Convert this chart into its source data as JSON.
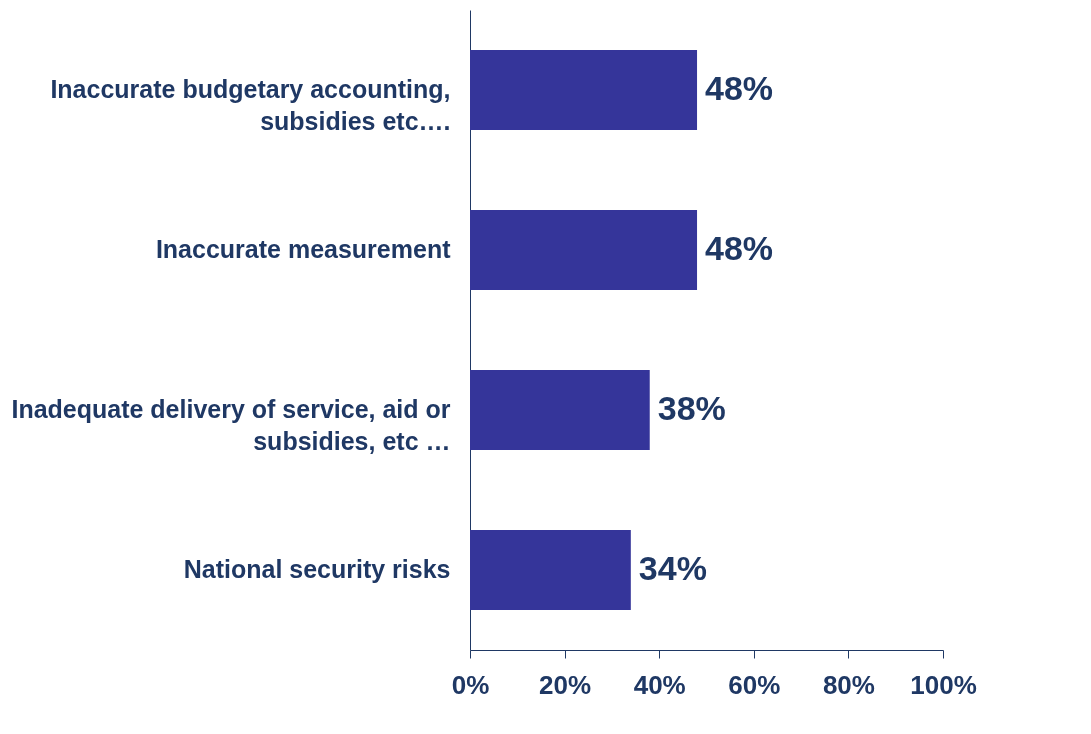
{
  "chart_data": {
    "type": "bar",
    "orientation": "horizontal",
    "categories": [
      "Inaccurate budgetary accounting, subsidies etc….",
      "Inaccurate measurement",
      "Inadequate delivery of service, aid or subsidies, etc …",
      "National security risks"
    ],
    "values": [
      48,
      48,
      38,
      34
    ],
    "color": "#35359a",
    "value_labels": [
      "48%",
      "48%",
      "38%",
      "34%"
    ],
    "xlim": [
      0,
      100
    ],
    "xticks": [
      {
        "value": 0,
        "label": "0%"
      },
      {
        "value": 20,
        "label": "20%"
      },
      {
        "value": 40,
        "label": "40%"
      },
      {
        "value": 60,
        "label": "60%"
      },
      {
        "value": 80,
        "label": "80%"
      },
      {
        "value": 100,
        "label": "100%"
      }
    ],
    "grid": false
  }
}
